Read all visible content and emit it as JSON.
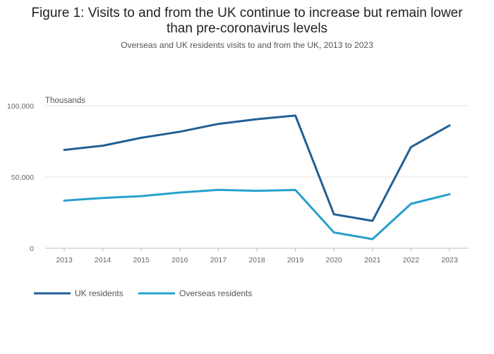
{
  "chart_data": {
    "type": "line",
    "title_lines": [
      "Figure 1: Visits to and from the UK continue to increase but remain lower",
      "than pre-coronavirus levels"
    ],
    "subtitle": "Overseas and UK residents visits to and from the UK, 2013 to 2023",
    "y_unit_label": "Thousands",
    "x": [
      "2013",
      "2014",
      "2015",
      "2016",
      "2017",
      "2018",
      "2019",
      "2020",
      "2021",
      "2022",
      "2023"
    ],
    "y_ticks": [
      {
        "value": 0,
        "label": "0"
      },
      {
        "value": 50000,
        "label": "50,000"
      },
      {
        "value": 100000,
        "label": "100,000"
      }
    ],
    "ylim": [
      0,
      100000
    ],
    "grid": true,
    "legend_position": "bottom-left",
    "series": [
      {
        "name": "UK residents",
        "color": "#206095",
        "values": [
          69000,
          72000,
          77500,
          81800,
          87300,
          90600,
          93100,
          23800,
          19200,
          71000,
          86200
        ]
      },
      {
        "name": "Overseas residents",
        "color": "#27a0cc",
        "values": [
          33400,
          35300,
          36600,
          39100,
          41000,
          40300,
          40900,
          11100,
          6400,
          31200,
          37900
        ]
      }
    ]
  }
}
